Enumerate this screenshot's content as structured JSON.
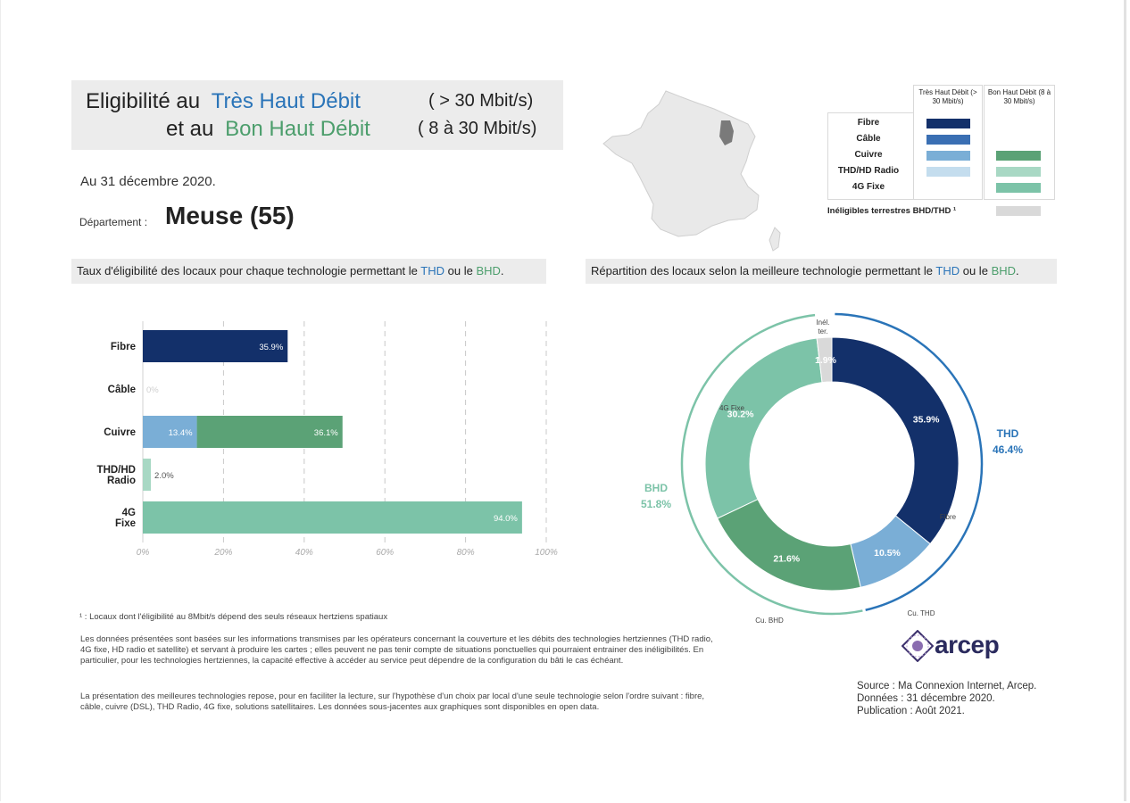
{
  "title": {
    "line1_prefix": "Eligibilité au",
    "line1_thd": "Très Haut Débit",
    "line1_speed": "( > 30 Mbit/s)",
    "line2_prefix": "et au",
    "line2_bhd": "Bon Haut Débit",
    "line2_speed": "( 8 à 30 Mbit/s)"
  },
  "date_line": "Au 31 décembre 2020.",
  "department": {
    "label": "Département :",
    "name": "Meuse (55)"
  },
  "left_section": {
    "title_prefix": "Taux d'éligibilité des locaux pour chaque technologie permettant le",
    "thd": "THD",
    "mid": "ou le",
    "bhd": "BHD",
    "end": "."
  },
  "right_section": {
    "title_prefix": "Répartition des locaux selon la meilleure technologie permettant le",
    "thd": "THD",
    "mid": "ou le",
    "bhd": "BHD",
    "end": "."
  },
  "legend": {
    "col_thd": "Très Haut Débit (> 30 Mbit/s)",
    "col_bhd": "Bon Haut Débit (8 à 30 Mbit/s)",
    "rows": [
      {
        "label": "Fibre",
        "thd_color": "#13306a",
        "bhd_color": null
      },
      {
        "label": "Câble",
        "thd_color": "#3a6fb3",
        "bhd_color": null
      },
      {
        "label": "Cuivre",
        "thd_color": "#7aaed6",
        "bhd_color": "#5ba276"
      },
      {
        "label": "THD/HD Radio",
        "thd_color": "#c4ddee",
        "bhd_color": "#a8d8c4"
      },
      {
        "label": "4G Fixe",
        "thd_color": null,
        "bhd_color": "#7cc3a8"
      }
    ],
    "inelig_label": "Inéligibles terrestres BHD/THD ¹",
    "inelig_color": "#d9d9d9"
  },
  "chart_data": [
    {
      "type": "bar",
      "orientation": "horizontal",
      "stacked": true,
      "categories": [
        "Fibre",
        "Câble",
        "Cuivre",
        "THD/HD Radio",
        "4G Fixe"
      ],
      "series": [
        {
          "name": "Très Haut Débit",
          "values": [
            35.9,
            0,
            13.4,
            0,
            0
          ],
          "colors": [
            "#13306a",
            "#3a6fb3",
            "#7aaed6",
            "#c4ddee",
            "#c4ddee"
          ]
        },
        {
          "name": "Bon Haut Débit",
          "values": [
            0,
            0,
            36.1,
            2.0,
            94.0
          ],
          "colors": [
            "#5ba276",
            "#5ba276",
            "#5ba276",
            "#a8d8c4",
            "#7cc3a8"
          ]
        }
      ],
      "data_labels": [
        [
          "35.9%",
          "",
          "13.4%",
          "",
          ""
        ],
        [
          "",
          "0%",
          "36.1%",
          "2.0%",
          "94.0%"
        ]
      ],
      "xlim": [
        0,
        100
      ],
      "x_ticks": [
        "0%",
        "20%",
        "40%",
        "60%",
        "80%",
        "100%"
      ],
      "grid": "vertical-dashed"
    },
    {
      "type": "pie",
      "variant": "donut",
      "slices": [
        {
          "label": "Fibre",
          "value": 35.9,
          "display": "35.9%",
          "color": "#13306a"
        },
        {
          "label": "Cu. THD",
          "value": 10.5,
          "display": "10.5%",
          "color": "#7aaed6"
        },
        {
          "label": "Cu. BHD",
          "value": 21.6,
          "display": "21.6%",
          "color": "#5ba276"
        },
        {
          "label": "4G Fixe",
          "value": 30.2,
          "display": "30.2%",
          "color": "#7cc3a8"
        },
        {
          "label": "Inél. ter.",
          "value": 1.9,
          "display": "1.9%",
          "color": "#d9d9d9"
        }
      ],
      "groups": [
        {
          "name": "THD",
          "value": 46.4,
          "display": "46.4%",
          "color": "#2a74b8"
        },
        {
          "name": "BHD",
          "value": 51.8,
          "display": "51.8%",
          "color": "#7cc3a8"
        }
      ]
    }
  ],
  "footnotes": {
    "note1": "¹ : Locaux dont l'éligibilité au 8Mbit/s dépend des seuls réseaux hertziens spatiaux",
    "para1": "Les données présentées sont basées sur les informations transmises par les opérateurs concernant la couverture et les débits des technologies hertziennes (THD radio, 4G fixe, HD radio et satellite) et servant à produire les cartes ; elles peuvent ne pas tenir compte de situations ponctuelles qui pourraient entrainer des inéligibilités. En particulier, pour les technologies hertziennes, la capacité effective à accéder au service peut dépendre de la configuration du bâti le cas échéant.",
    "para2": "La présentation des meilleures technologies repose, pour en faciliter la lecture, sur l'hypothèse d'un choix par local d'une seule technologie selon l'ordre suivant : fibre, câble, cuivre (DSL), THD Radio, 4G fixe, solutions satellitaires. Les données sous-jacentes aux graphiques sont disponibles en open data."
  },
  "logo": "arcep",
  "source": {
    "line1": "Source : Ma Connexion Internet, Arcep.",
    "line2": "Données : 31 décembre 2020.",
    "line3": "Publication : Août 2021."
  }
}
